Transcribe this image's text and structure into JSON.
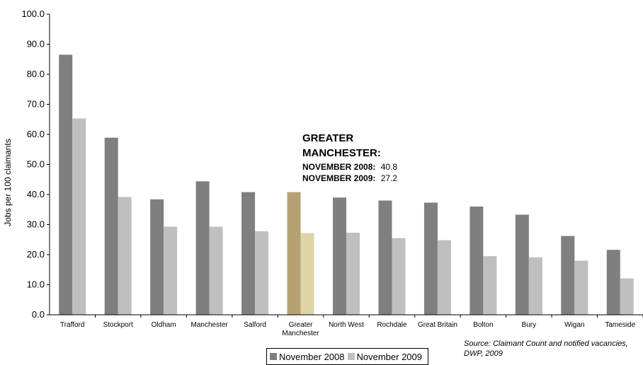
{
  "chart_data": {
    "type": "bar",
    "ylabel": "Jobs per 100 claimants",
    "ylim": [
      0,
      100
    ],
    "yticks": [
      "0.0",
      "10.0",
      "20.0",
      "30.0",
      "40.0",
      "50.0",
      "60.0",
      "70.0",
      "80.0",
      "90.0",
      "100.0"
    ],
    "categories": [
      "Trafford",
      "Stockport",
      "Oldham",
      "Manchester",
      "Salford",
      "Greater\nManchester",
      "North West",
      "Rochdale",
      "Great Britain",
      "Bolton",
      "Bury",
      "Wigan",
      "Tameside"
    ],
    "series": [
      {
        "name": "November 2008",
        "color": "#7f7f7f",
        "highlight_color": "#b5a273",
        "values": [
          86.5,
          58.9,
          38.4,
          44.4,
          40.8,
          40.8,
          39.0,
          38.0,
          37.3,
          36.0,
          33.3,
          26.2,
          21.6
        ]
      },
      {
        "name": "November 2009",
        "color": "#bfbfbf",
        "highlight_color": "#ddd5a8",
        "values": [
          65.3,
          39.2,
          29.3,
          29.3,
          27.8,
          27.2,
          27.3,
          25.5,
          24.8,
          19.5,
          19.1,
          18.0,
          12.1
        ]
      }
    ],
    "highlight_category": "Greater\nManchester",
    "annotation": {
      "title_lines": [
        "GREATER",
        "MANCHESTER:"
      ],
      "rows": [
        {
          "label": "NOVEMBER 2008:",
          "value": "40.8"
        },
        {
          "label": "NOVEMBER 2009:",
          "value": "27.2"
        }
      ]
    },
    "legend": {
      "placement": "bottom-center"
    },
    "source": "Source: Claimant Count and notified vacancies, DWP, 2009"
  }
}
